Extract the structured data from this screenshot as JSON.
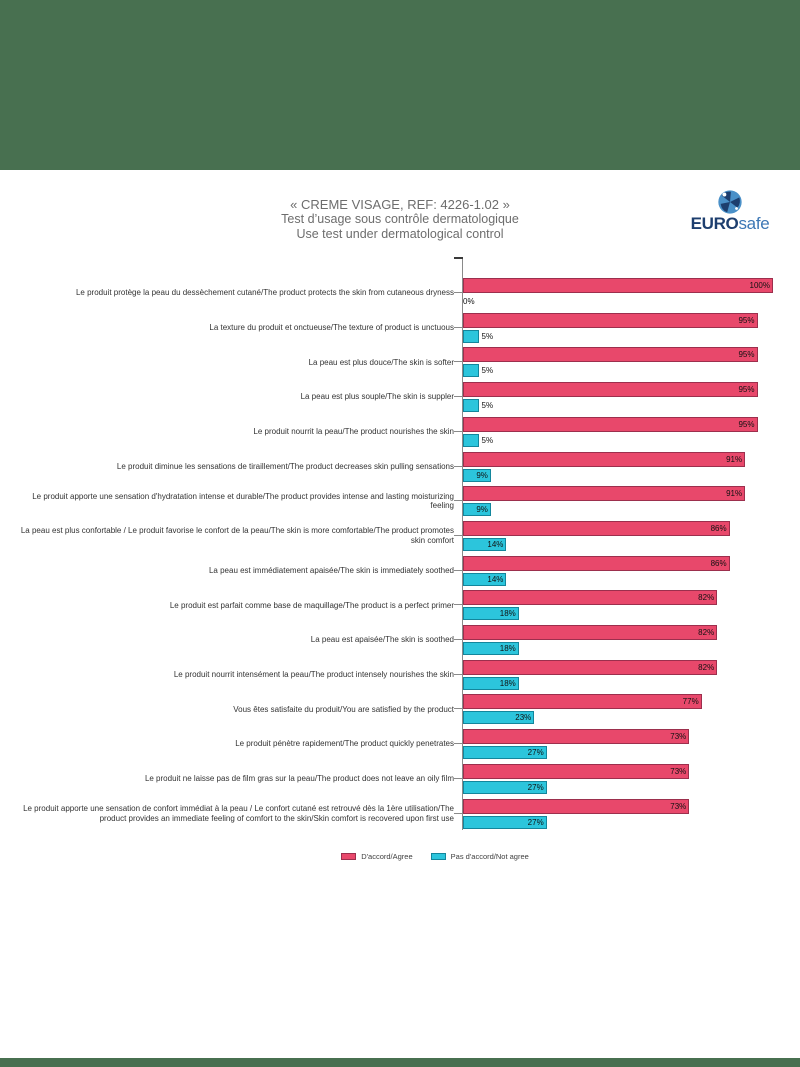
{
  "page": {
    "title_line1": "« CREME VISAGE, REF: 4226-1.02 »",
    "title_line2": "Test d’usage sous contrôle dermatologique",
    "title_line3": "Use test under dermatological control"
  },
  "logo": {
    "euro": "EURO",
    "safe": "safe",
    "euro_color": "#1d3e6e",
    "safe_color": "#3c77b5"
  },
  "chart_data": {
    "type": "bar",
    "orientation": "horizontal",
    "title": "",
    "xlabel": "",
    "ylabel": "",
    "xlim": [
      0,
      100
    ],
    "grid": false,
    "legend_position": "bottom",
    "value_suffix": "%",
    "categories": [
      "Le produit protège la peau du dessèchement cutané/The product protects the skin from cutaneous dryness",
      "La texture du produit et onctueuse/The texture of product is unctuous",
      "La peau est plus douce/The skin is softer",
      "La peau est plus souple/The skin is suppler",
      "Le produit nourrit la peau/The product nourishes the skin",
      "Le produit diminue les sensations de tiraillement/The product decreases skin pulling sensations",
      "Le produit apporte une sensation d'hydratation intense et durable/The product provides intense and lasting moisturizing feeling",
      "La peau est plus confortable / Le produit favorise le confort de la peau/The skin is more comfortable/The product promotes skin comfort",
      "La peau est immédiatement apaisée/The skin is immediately soothed",
      "Le produit est parfait comme base de maquillage/The product is a perfect primer",
      "La peau est apaisée/The skin is soothed",
      "Le produit nourrit intensément la peau/The product intensely nourishes the skin",
      "Vous êtes satisfaite du produit/You are satisfied by the product",
      "Le produit pénètre rapidement/The product quickly penetrates",
      "Le produit ne laisse pas de film gras sur la peau/The product does not leave an oily film",
      "Le produit apporte une sensation de confort immédiat à la peau / Le confort cutané est retrouvé dès la 1ère utilisation/The product provides an immediate feeling of comfort to the skin/Skin comfort is recovered upon first use"
    ],
    "series": [
      {
        "name": "D'accord/Agree",
        "color": "#e8486b",
        "border_color": "#9c2f4d",
        "values": [
          100,
          95,
          95,
          95,
          95,
          91,
          91,
          86,
          86,
          82,
          82,
          82,
          77,
          73,
          73,
          73
        ]
      },
      {
        "name": "Pas d'accord/Not agree",
        "color": "#2cc5dc",
        "border_color": "#13869c",
        "values": [
          0,
          5,
          5,
          5,
          5,
          9,
          9,
          14,
          14,
          18,
          18,
          18,
          23,
          27,
          27,
          27
        ]
      }
    ]
  }
}
